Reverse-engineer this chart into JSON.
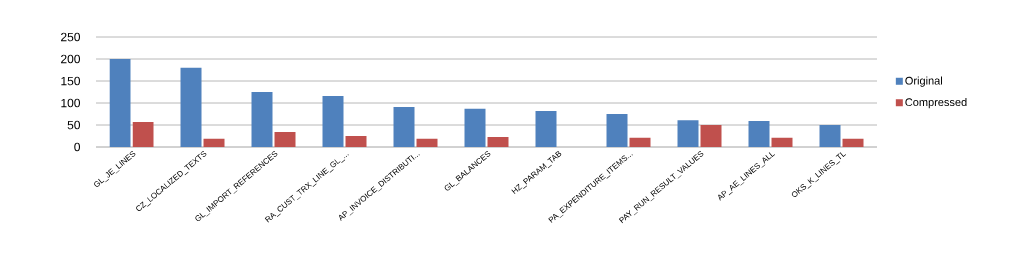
{
  "chart_data": {
    "type": "bar",
    "categories": [
      "GL_JE_LINES",
      "CZ_LOCALIZED_TEXTS",
      "GL_IMPORT_REFERENCES",
      "RA_CUST_TRX_LINE_GL_...",
      "AP_INVOICE_DISTRIBUTI...",
      "GL_BALANCES",
      "HZ_PARAM_TAB",
      "PA_EXPENDITURE_ITEMS...",
      "PAY_RUN_RESULT_VALUES",
      "AP_AE_LINES_ALL",
      "OKS_K_LINES_TL"
    ],
    "series": [
      {
        "name": "Original",
        "color": "#4f81bd",
        "values": [
          200,
          180,
          125,
          116,
          91,
          87,
          82,
          75,
          61,
          59,
          50
        ]
      },
      {
        "name": "Compressed",
        "color": "#c0504d",
        "values": [
          57,
          19,
          34,
          25,
          19,
          23,
          null,
          21,
          50,
          21,
          19
        ]
      }
    ],
    "ylim": [
      0,
      250
    ],
    "yticks": [
      0,
      50,
      100,
      150,
      200,
      250
    ],
    "grid": "y",
    "legend": "right"
  }
}
